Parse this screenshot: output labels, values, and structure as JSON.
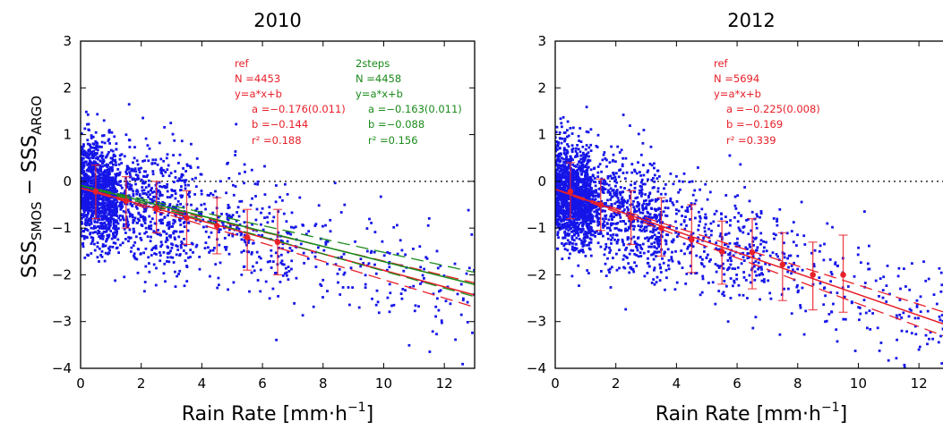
{
  "figure": {
    "ylabel_main": "SSS",
    "ylabel_sub1": "SMOS",
    "ylabel_minus": " − SSS",
    "ylabel_sub2": "ARGO"
  },
  "chart_data": [
    {
      "type": "scatter",
      "title": "2010",
      "xlabel": "Rain Rate [mm·h⁻¹]",
      "xlabel_main": "Rain Rate [mm·h",
      "xlabel_sup": "−1",
      "xlabel_end": "]",
      "xlim": [
        0,
        13
      ],
      "ylim": [
        -4,
        3
      ],
      "xticks": [
        0,
        2,
        4,
        6,
        8,
        10,
        12
      ],
      "yticks": [
        -4,
        -3,
        -2,
        -1,
        0,
        1,
        2,
        3
      ],
      "zero_line": true,
      "point_color": "#1515e8",
      "fits": [
        {
          "name": "ref",
          "color": "#e8202a",
          "a": -0.176,
          "b": -0.144,
          "ci_band": [
            -0.02,
            0.02
          ],
          "lines": [
            "ref",
            "N =4453",
            "y=a*x+b",
            "a =−0.176(0.011)",
            "b =−0.144",
            "r² =0.188"
          ],
          "binned": [
            {
              "x": 0.5,
              "y": -0.22,
              "lo": -0.8,
              "hi": 0.35
            },
            {
              "x": 1.5,
              "y": -0.42,
              "lo": -1.0,
              "hi": 0.1
            },
            {
              "x": 2.5,
              "y": -0.58,
              "lo": -1.1,
              "hi": 0.0
            },
            {
              "x": 3.5,
              "y": -0.78,
              "lo": -1.35,
              "hi": -0.2
            },
            {
              "x": 4.5,
              "y": -0.95,
              "lo": -1.55,
              "hi": -0.35
            },
            {
              "x": 5.5,
              "y": -1.2,
              "lo": -1.9,
              "hi": -0.6
            },
            {
              "x": 6.5,
              "y": -1.3,
              "lo": -2.0,
              "hi": -0.6
            }
          ]
        },
        {
          "name": "2steps",
          "color": "#1a8a1a",
          "a": -0.163,
          "b": -0.088,
          "ci_band": [
            -0.02,
            0.02
          ],
          "lines": [
            "2steps",
            "N =4458",
            "y=a*x+b",
            "a =−0.163(0.011)",
            "b =−0.088",
            "r² =0.156"
          ],
          "binned": []
        }
      ]
    },
    {
      "type": "scatter",
      "title": "2012",
      "xlabel": "Rain Rate [mm·h⁻¹]",
      "xlabel_main": "Rain Rate [mm·h",
      "xlabel_sup": "−1",
      "xlabel_end": "]",
      "xlim": [
        0,
        13
      ],
      "ylim": [
        -4,
        3
      ],
      "xticks": [
        0,
        2,
        4,
        6,
        8,
        10,
        12
      ],
      "yticks": [
        -4,
        -3,
        -2,
        -1,
        0,
        1,
        2,
        3
      ],
      "zero_line": true,
      "point_color": "#1515e8",
      "fits": [
        {
          "name": "ref",
          "color": "#e8202a",
          "a": -0.225,
          "b": -0.169,
          "ci_band": [
            -0.02,
            0.02
          ],
          "lines": [
            "ref",
            "N =5694",
            "y=a*x+b",
            "a =−0.225(0.008)",
            "b =−0.169",
            "r² =0.339"
          ],
          "binned": [
            {
              "x": 0.5,
              "y": -0.22,
              "lo": -0.8,
              "hi": 0.4
            },
            {
              "x": 1.5,
              "y": -0.5,
              "lo": -1.05,
              "hi": 0.05
            },
            {
              "x": 2.5,
              "y": -0.78,
              "lo": -1.35,
              "hi": -0.2
            },
            {
              "x": 3.5,
              "y": -1.0,
              "lo": -1.6,
              "hi": -0.35
            },
            {
              "x": 4.5,
              "y": -1.25,
              "lo": -1.95,
              "hi": -0.5
            },
            {
              "x": 5.5,
              "y": -1.5,
              "lo": -2.2,
              "hi": -0.85
            },
            {
              "x": 6.5,
              "y": -1.52,
              "lo": -2.3,
              "hi": -0.8
            },
            {
              "x": 7.5,
              "y": -1.78,
              "lo": -2.55,
              "hi": -1.1
            },
            {
              "x": 8.5,
              "y": -2.0,
              "lo": -2.75,
              "hi": -1.3
            },
            {
              "x": 9.5,
              "y": -2.0,
              "lo": -2.8,
              "hi": -1.15
            }
          ]
        }
      ]
    }
  ]
}
